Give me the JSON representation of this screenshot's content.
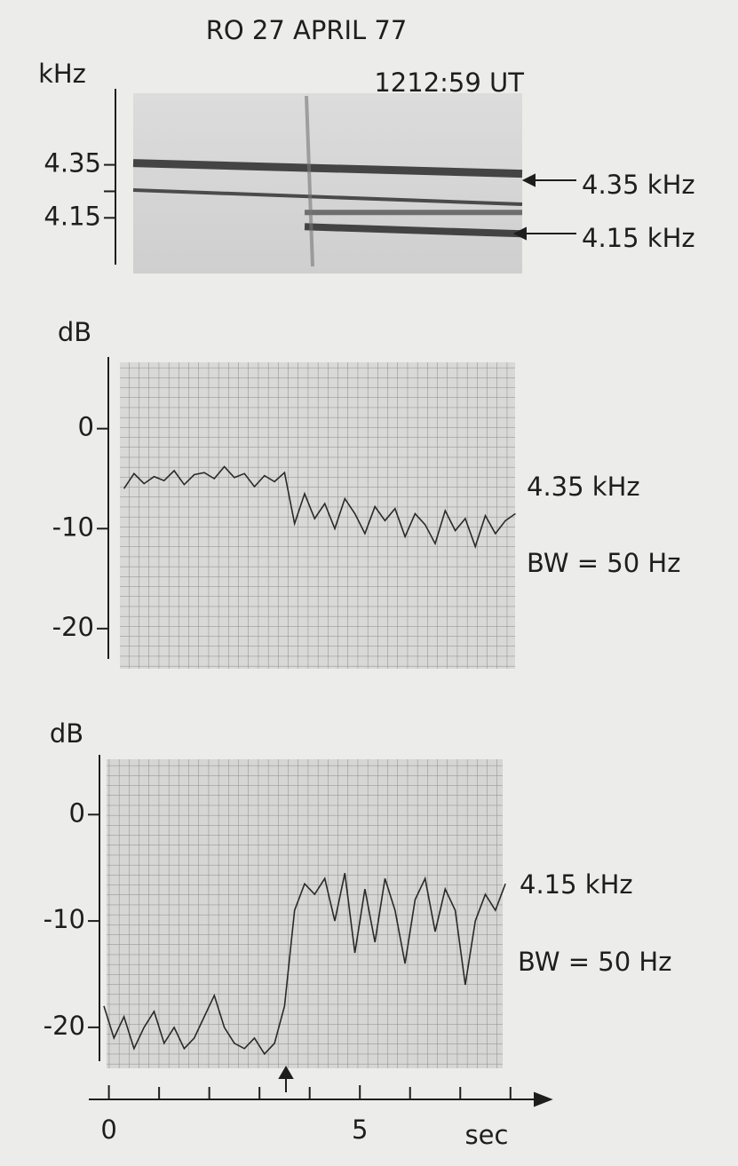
{
  "chart_data": [
    {
      "type": "spectrogram",
      "title": "RO 27 APRIL 77",
      "subtitle": "1212:59 UT",
      "y_label": "kHz",
      "ylim": [
        3.95,
        4.62
      ],
      "yticks": [
        4.35,
        4.15
      ],
      "annotations": [
        "4.35 kHz",
        "4.15 kHz"
      ]
    },
    {
      "type": "line",
      "y_label": "dB",
      "ylim": [
        -23.3,
        6.9
      ],
      "yticks": [
        0,
        -10,
        -20
      ],
      "color": "#2a2a2a",
      "annotations": [
        "4.35 kHz",
        "BW = 50 Hz"
      ],
      "x": [
        0.3,
        0.5,
        0.7,
        0.9,
        1.1,
        1.3,
        1.5,
        1.7,
        1.9,
        2.1,
        2.3,
        2.5,
        2.7,
        2.9,
        3.1,
        3.3,
        3.5,
        3.7,
        3.9,
        4.1,
        4.3,
        4.5,
        4.7,
        4.9,
        5.1,
        5.3,
        5.5,
        5.7,
        5.9,
        6.1,
        6.3,
        6.5,
        6.7,
        6.9,
        7.1,
        7.3,
        7.5,
        7.7,
        7.9,
        8.1
      ],
      "values": [
        -6,
        -4.5,
        -5.5,
        -4.8,
        -5.2,
        -4.2,
        -5.6,
        -4.6,
        -4.4,
        -5,
        -3.8,
        -4.9,
        -4.5,
        -5.8,
        -4.7,
        -5.3,
        -4.4,
        -9.5,
        -6.5,
        -9,
        -7.5,
        -10,
        -7,
        -8.5,
        -10.5,
        -7.8,
        -9.2,
        -8,
        -10.8,
        -8.5,
        -9.6,
        -11.5,
        -8.2,
        -10.2,
        -9,
        -11.8,
        -8.7,
        -10.5,
        -9.2,
        -8.5
      ]
    },
    {
      "type": "line",
      "y_label": "dB",
      "ylim": [
        -23.6,
        5.2
      ],
      "yticks": [
        0,
        -10,
        -20
      ],
      "color": "#2a2a2a",
      "annotations": [
        "4.15 kHz",
        "BW = 50 Hz"
      ],
      "x_label": "sec",
      "xlim": [
        -0.4,
        8.8
      ],
      "xticks": [
        0,
        5
      ],
      "xminor_ticks": [
        1,
        2,
        3,
        4,
        6,
        7,
        8
      ],
      "x": [
        -0.1,
        0.1,
        0.3,
        0.5,
        0.7,
        0.9,
        1.1,
        1.3,
        1.5,
        1.7,
        1.9,
        2.1,
        2.3,
        2.5,
        2.7,
        2.9,
        3.1,
        3.3,
        3.5,
        3.7,
        3.9,
        4.1,
        4.3,
        4.5,
        4.7,
        4.9,
        5.1,
        5.3,
        5.5,
        5.7,
        5.9,
        6.1,
        6.3,
        6.5,
        6.7,
        6.9,
        7.1,
        7.3,
        7.5,
        7.7,
        7.9
      ],
      "values": [
        -18,
        -21,
        -19,
        -22,
        -20,
        -18.5,
        -21.5,
        -20,
        -22,
        -21,
        -19,
        -17,
        -20,
        -21.5,
        -22,
        -21,
        -22.5,
        -21.5,
        -18,
        -9,
        -6.5,
        -7.5,
        -6,
        -10,
        -5.5,
        -13,
        -7,
        -12,
        -6,
        -9,
        -14,
        -8,
        -6,
        -11,
        -7,
        -9,
        -16,
        -10,
        -7.5,
        -9,
        -6.5
      ]
    }
  ]
}
